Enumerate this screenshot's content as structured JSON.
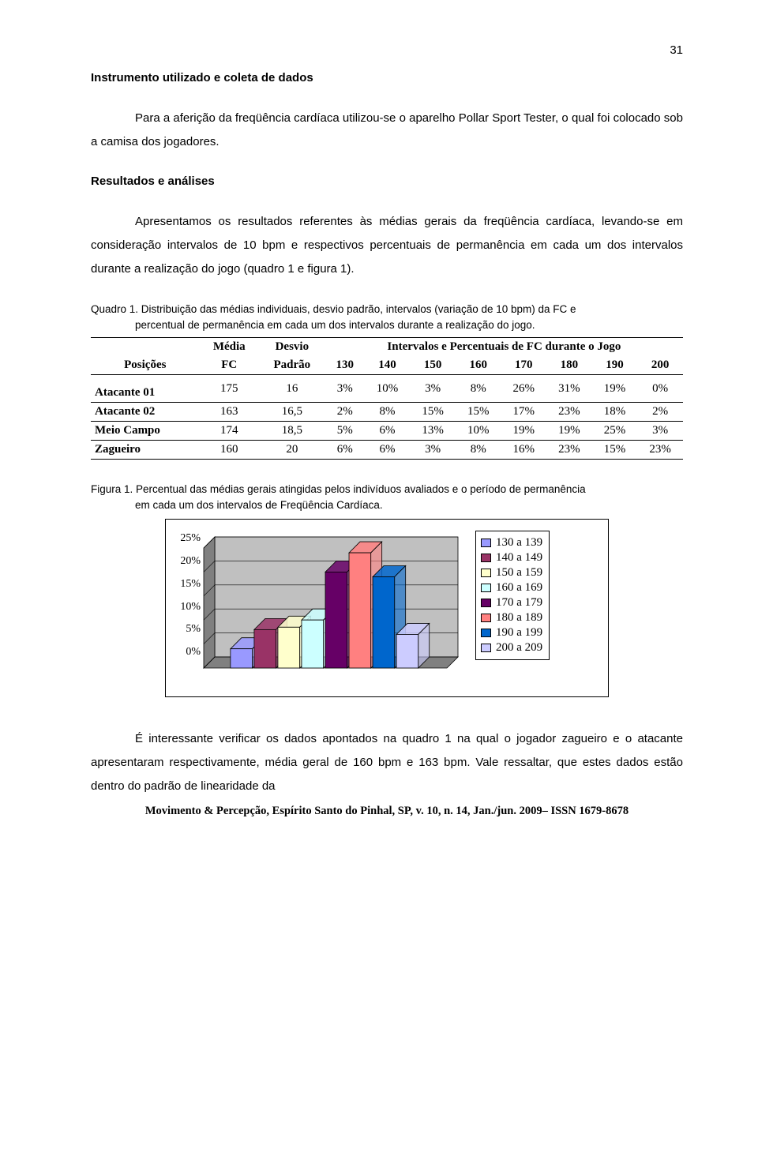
{
  "page_number": "31",
  "section1_title": "Instrumento utilizado e coleta de dados",
  "paragraph1": "Para a aferição da freqüência cardíaca utilizou-se o aparelho Pollar Sport Tester, o qual foi colocado sob a camisa dos jogadores.",
  "section2_title": "Resultados e análises",
  "paragraph2": "Apresentamos os resultados referentes às médias gerais da freqüência cardíaca, levando-se em consideração intervalos de 10 bpm e respectivos percentuais de permanência em cada um dos intervalos durante a realização do jogo (quadro 1 e figura 1).",
  "quadro_caption_l1": "Quadro 1. Distribuição das médias individuais, desvio padrão, intervalos (variação de 10 bpm) da FC e",
  "quadro_caption_l2": "percentual de permanência em cada um dos intervalos durante a realização do jogo.",
  "table": {
    "h_media": "Média",
    "h_desvio": "Desvio",
    "h_interval_title": "Intervalos e Percentuais de FC durante o Jogo",
    "h_posicoes": "Posições",
    "h_fc": "FC",
    "h_padrao": "Padrão",
    "cols": [
      "130",
      "140",
      "150",
      "160",
      "170",
      "180",
      "190",
      "200"
    ],
    "rows": [
      {
        "pos": "Atacante 01",
        "fc": "175",
        "dp": "16",
        "v": [
          "3%",
          "10%",
          "3%",
          "8%",
          "26%",
          "31%",
          "19%",
          "0%"
        ]
      },
      {
        "pos": "Atacante 02",
        "fc": "163",
        "dp": "16,5",
        "v": [
          "2%",
          "8%",
          "15%",
          "15%",
          "17%",
          "23%",
          "18%",
          "2%"
        ]
      },
      {
        "pos": "Meio Campo",
        "fc": "174",
        "dp": "18,5",
        "v": [
          "5%",
          "6%",
          "13%",
          "10%",
          "19%",
          "19%",
          "25%",
          "3%"
        ]
      },
      {
        "pos": "Zagueiro",
        "fc": "160",
        "dp": "20",
        "v": [
          "6%",
          "6%",
          "3%",
          "8%",
          "16%",
          "23%",
          "15%",
          "23%"
        ]
      }
    ]
  },
  "figura_caption_l1": "Figura 1. Percentual das médias gerais atingidas pelos indivíduos avaliados e o período de permanência",
  "figura_caption_l2": "em cada um dos intervalos de Freqüência Cardíaca.",
  "chart": {
    "type": "bar",
    "ylim": [
      0,
      25
    ],
    "ytick_step": 5,
    "yticks": [
      "25%",
      "20%",
      "15%",
      "10%",
      "5%",
      "0%"
    ],
    "background_color": "#c0c0c0",
    "plot_bg": "#c0c0c0",
    "grid_color": "#000000",
    "face_top_color": "#c0c0c0",
    "face_side_color": "#808080",
    "bar_border": "#000000",
    "series": [
      {
        "label": "130 a 139",
        "value": 4,
        "color": "#9999ff"
      },
      {
        "label": "140 a 149",
        "value": 8,
        "color": "#993366"
      },
      {
        "label": "150 a 159",
        "value": 8.5,
        "color": "#ffffcc"
      },
      {
        "label": "160 a 169",
        "value": 10,
        "color": "#ccffff"
      },
      {
        "label": "170 a 179",
        "value": 20,
        "color": "#660066"
      },
      {
        "label": "180 a 189",
        "value": 24,
        "color": "#ff8080"
      },
      {
        "label": "190 a 199",
        "value": 19,
        "color": "#0066cc"
      },
      {
        "label": "200 a 209",
        "value": 7,
        "color": "#ccccff"
      }
    ]
  },
  "paragraph3": "É interessante verificar os dados apontados na quadro 1 na qual o jogador zagueiro e o atacante apresentaram respectivamente, média geral de 160 bpm e 163 bpm. Vale ressaltar, que estes dados estão dentro do padrão de linearidade da",
  "footer": "Movimento & Percepção, Espírito Santo do Pinhal, SP, v. 10, n. 14, Jan./jun. 2009– ISSN 1679-8678"
}
